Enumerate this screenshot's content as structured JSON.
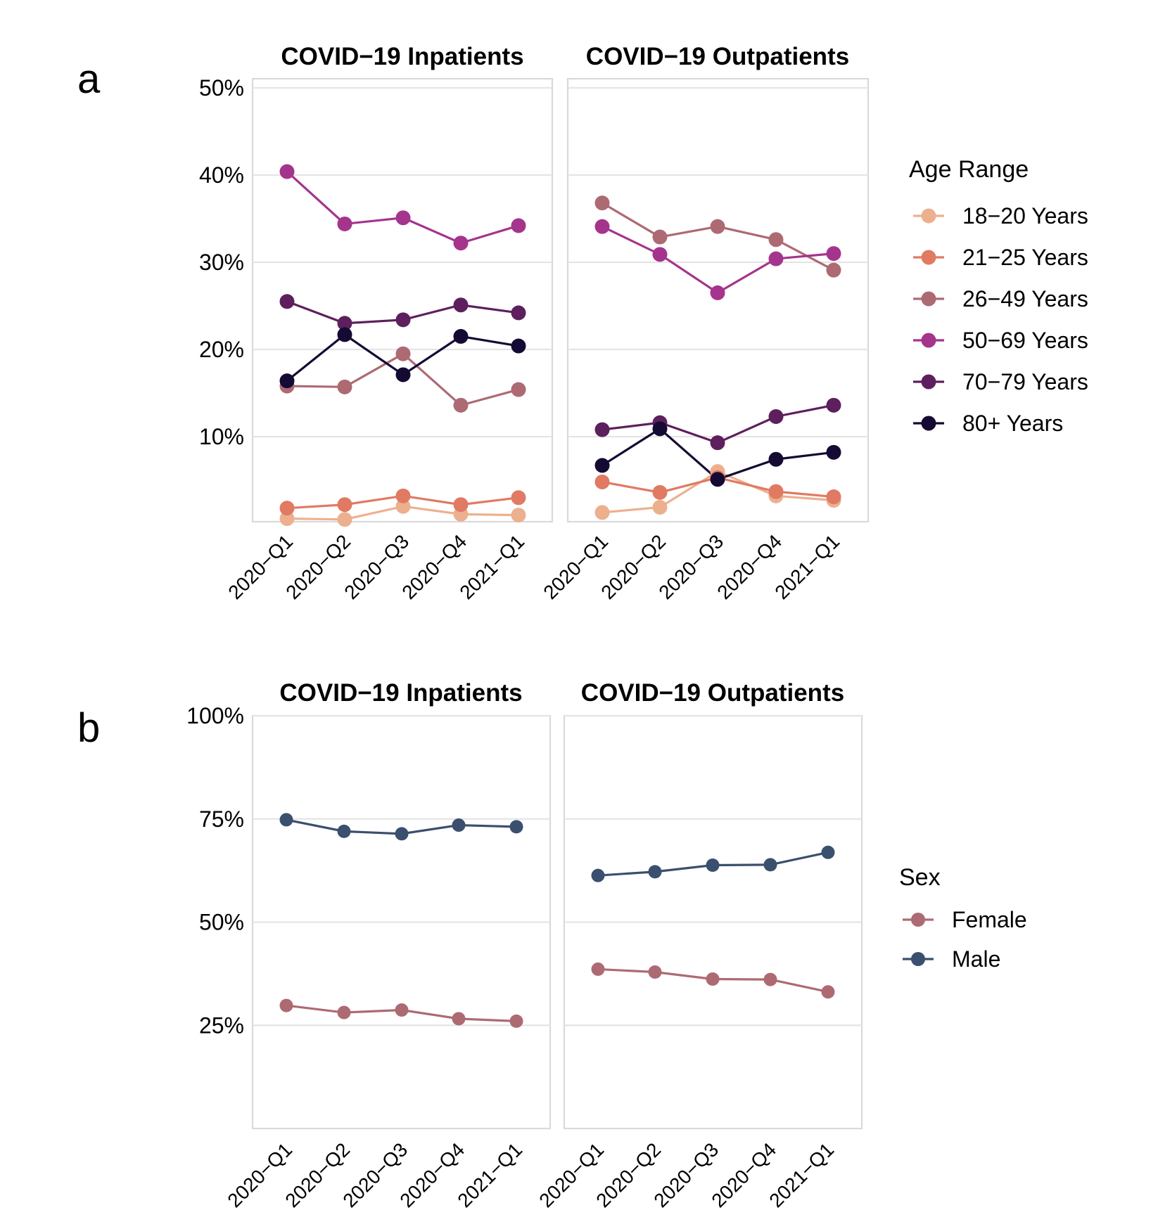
{
  "chart_data": [
    {
      "type": "line",
      "tag": "a",
      "legend_title": "Age Range",
      "legend_position": "right",
      "y_tick_labels": [
        "10%",
        "20%",
        "30%",
        "40%",
        "50%"
      ],
      "y_ticks": [
        10,
        20,
        30,
        40,
        50
      ],
      "ylim": [
        0,
        50
      ],
      "ylabel": "",
      "xlabel": "",
      "grid": true,
      "categories": [
        "2020−Q1",
        "2020−Q2",
        "2020−Q3",
        "2020−Q4",
        "2021−Q1"
      ],
      "series_meta": [
        {
          "name": "18−20 Years",
          "color": "#EDB08F"
        },
        {
          "name": "21−25 Years",
          "color": "#E07A63"
        },
        {
          "name": "26−49 Years",
          "color": "#AD6A73"
        },
        {
          "name": "50−69 Years",
          "color": "#A5348C"
        },
        {
          "name": "70−79 Years",
          "color": "#5E1F5E"
        },
        {
          "name": "80+ Years",
          "color": "#140A33"
        }
      ],
      "facets": [
        {
          "title": "COVID−19 Inpatients",
          "series": [
            {
              "name": "18−20 Years",
              "values": [
                0.6,
                0.5,
                2.0,
                1.1,
                1.0
              ]
            },
            {
              "name": "21−25 Years",
              "values": [
                1.8,
                2.2,
                3.2,
                2.2,
                3.0
              ]
            },
            {
              "name": "26−49 Years",
              "values": [
                15.8,
                15.7,
                19.5,
                13.6,
                15.4
              ]
            },
            {
              "name": "50−69 Years",
              "values": [
                40.4,
                34.4,
                35.1,
                32.2,
                34.2
              ]
            },
            {
              "name": "70−79 Years",
              "values": [
                25.5,
                23.0,
                23.4,
                25.1,
                24.2
              ]
            },
            {
              "name": "80+ Years",
              "values": [
                16.4,
                21.7,
                17.1,
                21.5,
                20.4
              ]
            }
          ]
        },
        {
          "title": "COVID−19 Outpatients",
          "series": [
            {
              "name": "18−20 Years",
              "values": [
                1.3,
                1.9,
                6.0,
                3.2,
                2.7
              ]
            },
            {
              "name": "21−25 Years",
              "values": [
                4.8,
                3.6,
                5.3,
                3.7,
                3.1
              ]
            },
            {
              "name": "26−49 Years",
              "values": [
                36.8,
                32.9,
                34.1,
                32.6,
                29.1
              ]
            },
            {
              "name": "50−69 Years",
              "values": [
                34.1,
                30.9,
                26.5,
                30.4,
                31.0
              ]
            },
            {
              "name": "70−79 Years",
              "values": [
                10.8,
                11.6,
                9.3,
                12.3,
                13.6
              ]
            },
            {
              "name": "80+ Years",
              "values": [
                6.7,
                10.9,
                5.1,
                7.4,
                8.2
              ]
            }
          ]
        }
      ]
    },
    {
      "type": "line",
      "tag": "b",
      "legend_title": "Sex",
      "legend_position": "right",
      "y_tick_labels": [
        "25%",
        "50%",
        "75%",
        "100%"
      ],
      "y_ticks": [
        25,
        50,
        75,
        100
      ],
      "ylim": [
        0,
        100
      ],
      "ylabel": "",
      "xlabel": "",
      "grid": true,
      "categories": [
        "2020−Q1",
        "2020−Q2",
        "2020−Q3",
        "2020−Q4",
        "2021−Q1"
      ],
      "series_meta": [
        {
          "name": "Female",
          "color": "#AD6A73"
        },
        {
          "name": "Male",
          "color": "#3B4F6E"
        }
      ],
      "facets": [
        {
          "title": "COVID−19 Inpatients",
          "series": [
            {
              "name": "Female",
              "values": [
                29.8,
                28.1,
                28.7,
                26.6,
                26.0
              ]
            },
            {
              "name": "Male",
              "values": [
                74.8,
                72.0,
                71.4,
                73.5,
                73.1
              ]
            }
          ]
        },
        {
          "title": "COVID−19 Outpatients",
          "series": [
            {
              "name": "Female",
              "values": [
                38.6,
                37.9,
                36.2,
                36.1,
                33.1
              ]
            },
            {
              "name": "Male",
              "values": [
                61.3,
                62.2,
                63.8,
                63.9,
                66.9
              ]
            }
          ]
        }
      ]
    }
  ]
}
